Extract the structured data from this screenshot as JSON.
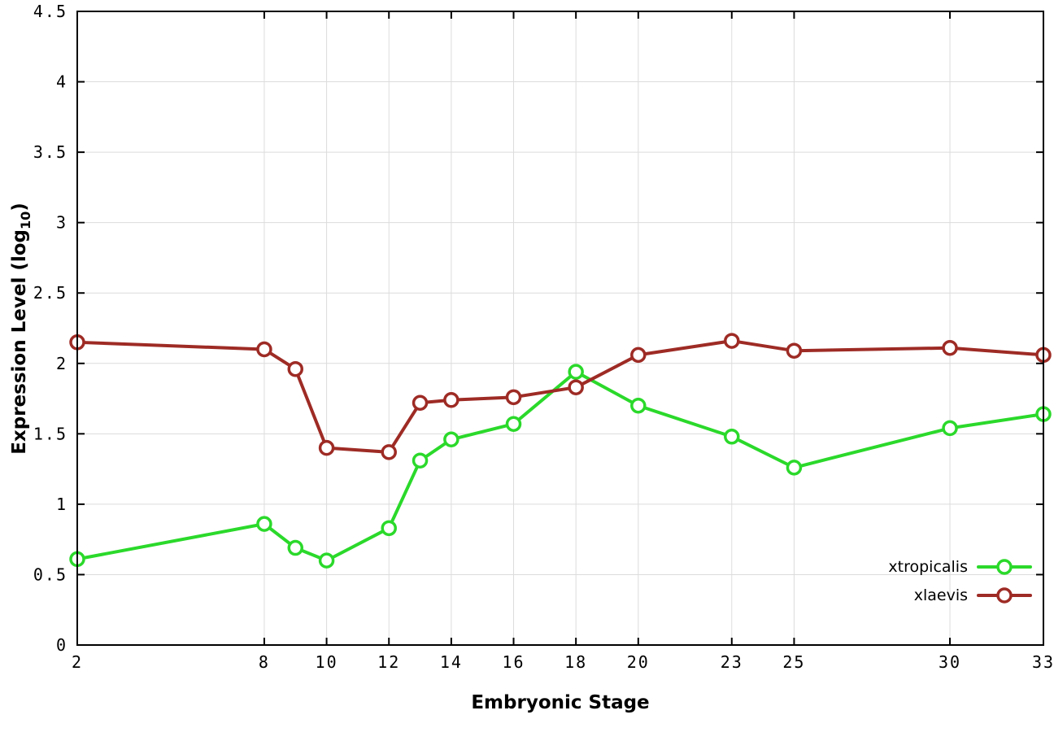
{
  "chart_data": {
    "type": "line",
    "title": "",
    "xlabel": "Embryonic Stage",
    "ylabel_main": "Expression Level (log",
    "ylabel_sub": "10",
    "ylabel_close": ")",
    "xlim": [
      2,
      33
    ],
    "ylim": [
      0,
      4.5
    ],
    "xticks": [
      "2",
      "8",
      "10",
      "12",
      "14",
      "16",
      "18",
      "20",
      "23",
      "25",
      "30",
      "33"
    ],
    "yticks": [
      "0",
      "0.5",
      "1",
      "1.5",
      "2",
      "2.5",
      "3",
      "3.5",
      "4",
      "4.5"
    ],
    "grid": true,
    "grid_color": "#dcdcdc",
    "border_color": "#000000",
    "legend_position": "inside-bottom-right",
    "series": [
      {
        "name": "xtropicalis",
        "color": "#2bd92b",
        "x": [
          2,
          8,
          9,
          10,
          12,
          13,
          14,
          16,
          18,
          20,
          23,
          25,
          30,
          33
        ],
        "y": [
          0.61,
          0.86,
          0.69,
          0.6,
          0.83,
          1.31,
          1.46,
          1.57,
          1.94,
          1.7,
          1.48,
          1.26,
          1.54,
          1.64
        ]
      },
      {
        "name": "xlaevis",
        "color": "#9e2b25",
        "x": [
          2,
          8,
          9,
          10,
          12,
          13,
          14,
          16,
          18,
          20,
          23,
          25,
          30,
          33
        ],
        "y": [
          2.15,
          2.1,
          1.96,
          1.4,
          1.37,
          1.72,
          1.74,
          1.76,
          1.83,
          2.06,
          2.16,
          2.09,
          2.11,
          2.06
        ]
      }
    ]
  }
}
